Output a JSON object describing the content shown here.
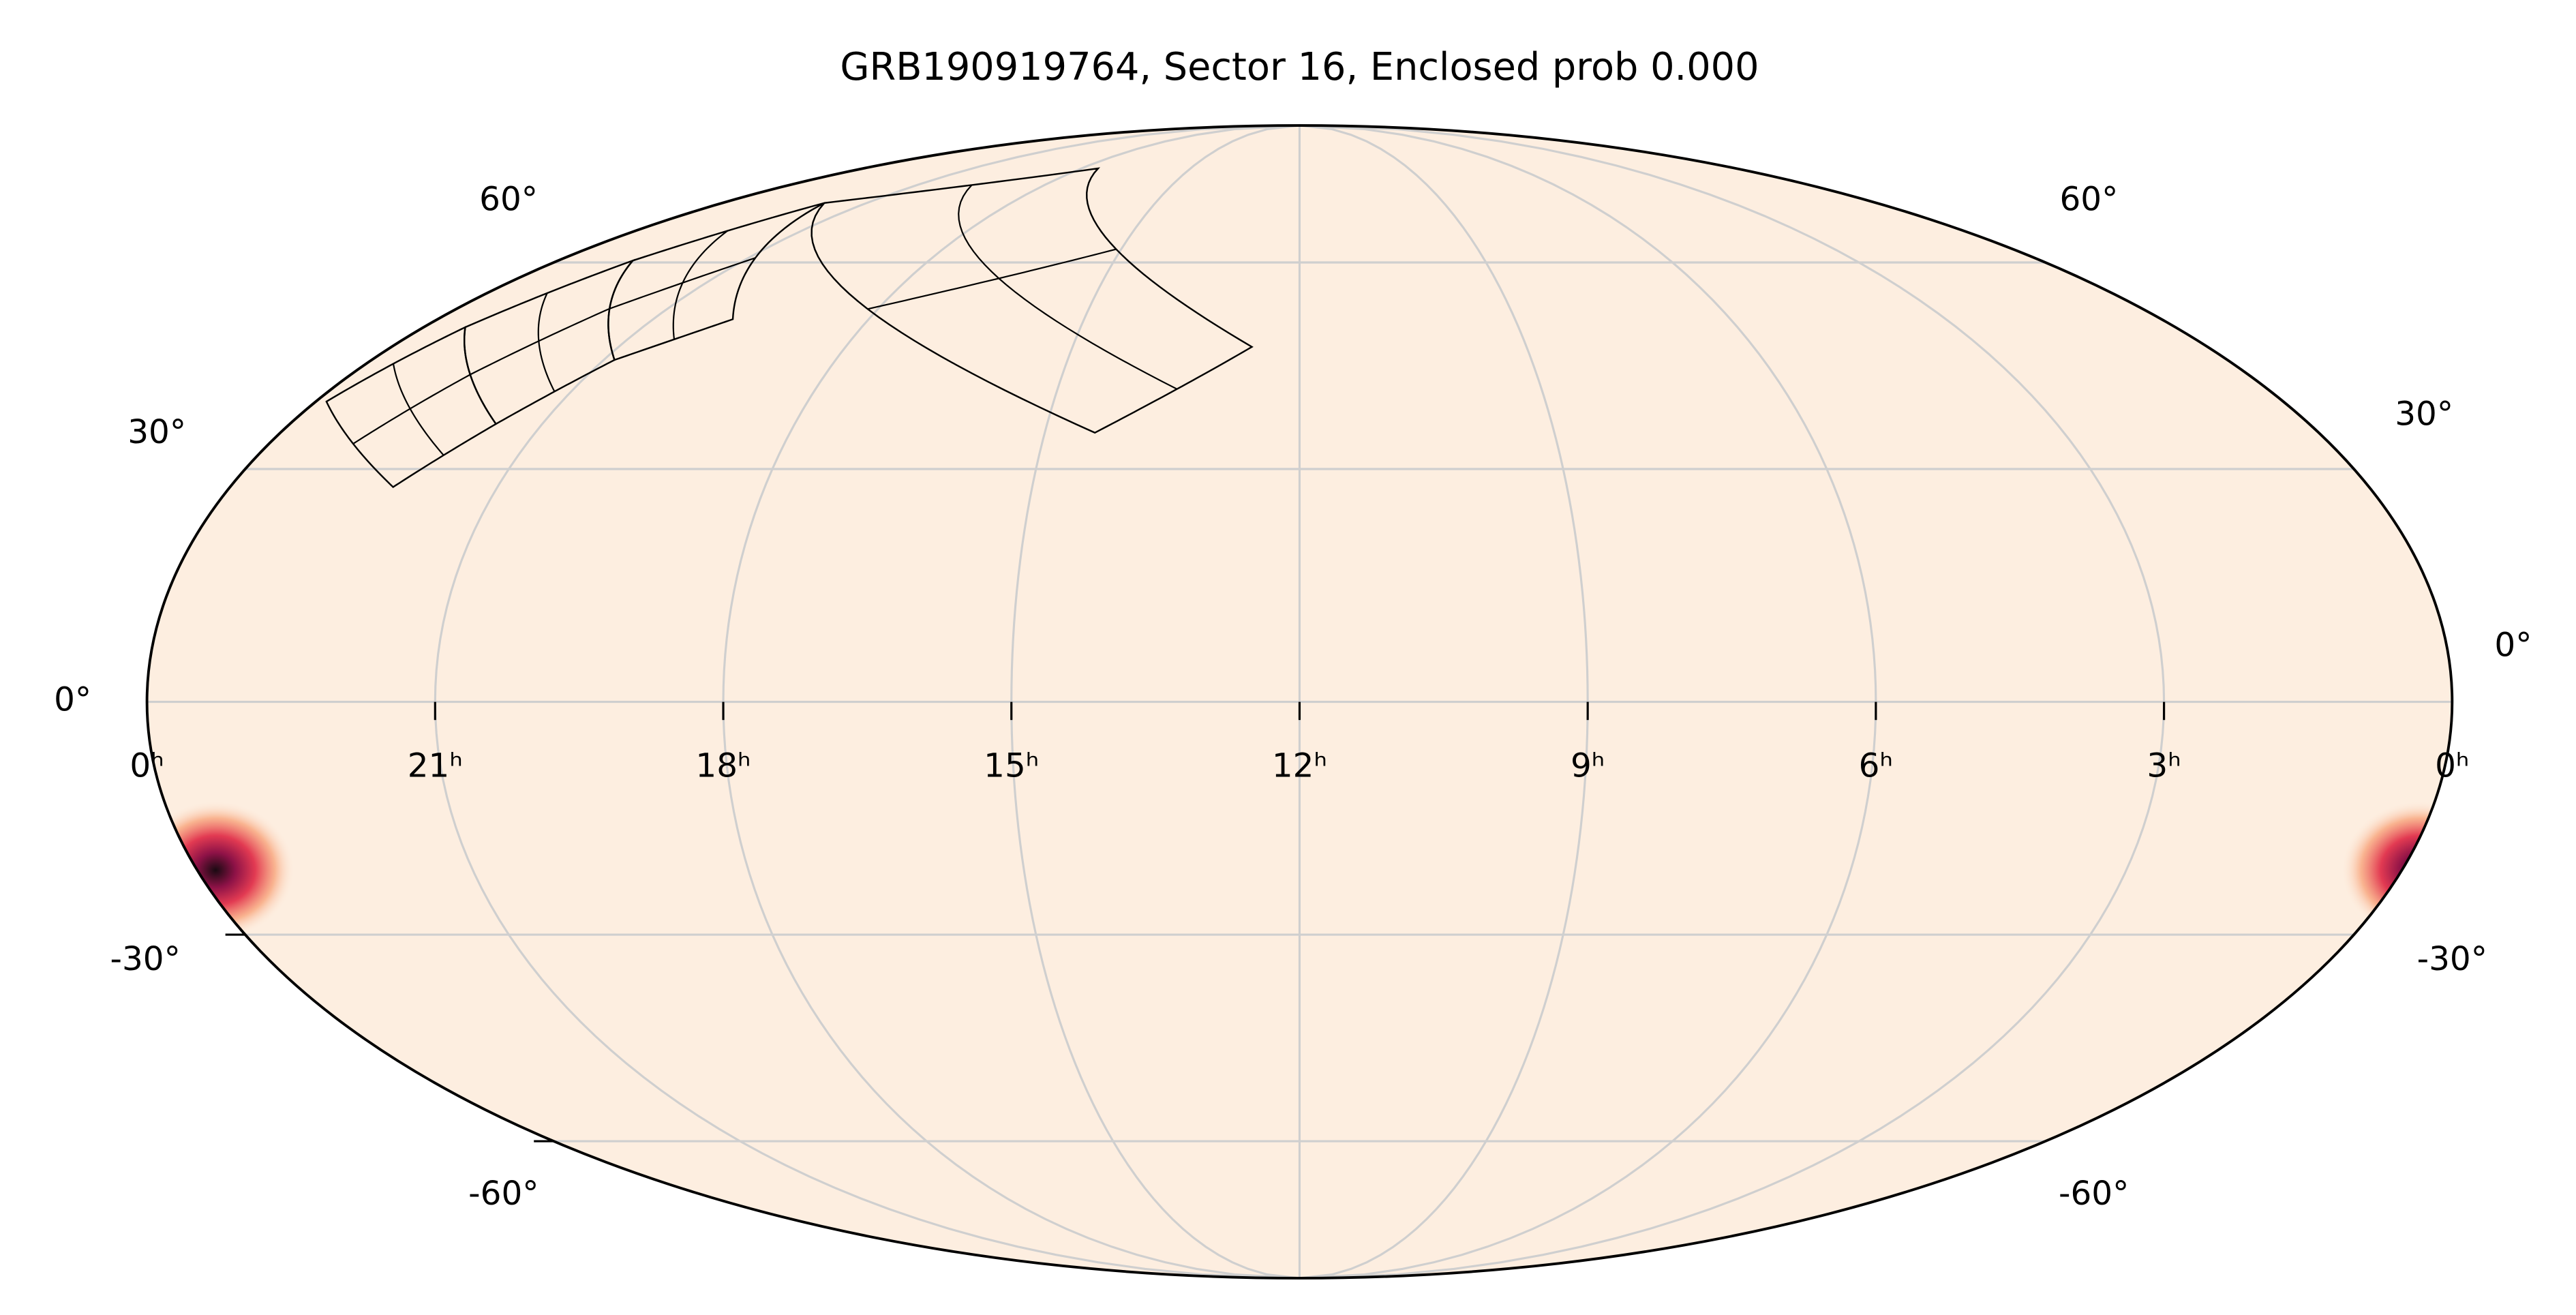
{
  "chart_data": {
    "type": "mollweide",
    "title": "GRB190919764, Sector 16, Enclosed prob 0.000",
    "xticks": [
      {
        "value": 24,
        "label": "0ʰ"
      },
      {
        "value": 21,
        "label": "21ʰ"
      },
      {
        "value": 18,
        "label": "18ʰ"
      },
      {
        "value": 15,
        "label": "15ʰ"
      },
      {
        "value": 12,
        "label": "12ʰ"
      },
      {
        "value": 9,
        "label": "9ʰ"
      },
      {
        "value": 6,
        "label": "6ʰ"
      },
      {
        "value": 3,
        "label": "3ʰ"
      },
      {
        "value": 0,
        "label": "0ʰ"
      }
    ],
    "yticks": [
      {
        "value": 60,
        "label": "60°"
      },
      {
        "value": 30,
        "label": "30°"
      },
      {
        "value": 0,
        "label": "0°"
      },
      {
        "value": -30,
        "label": "-30°"
      },
      {
        "value": -60,
        "label": "-60°"
      }
    ],
    "grid": true,
    "background": "#fdeee0",
    "peak": {
      "ra": 23.8,
      "dec": -21.5
    },
    "footprint_color": "#000000",
    "footprints": [
      {
        "corners": [
          [
            23.87,
            39.2
          ],
          [
            23.43,
            49.9
          ],
          [
            21.55,
            36.1
          ],
          [
            22.17,
            27.6
          ]
        ]
      },
      {
        "corners": [
          [
            23.43,
            49.9
          ],
          [
            22.79,
            60.3
          ],
          [
            20.86,
            45.1
          ],
          [
            21.55,
            36.1
          ]
        ]
      },
      {
        "corners": [
          [
            22.79,
            60.3
          ],
          [
            21.88,
            70.4
          ],
          [
            19.89,
            51.1
          ],
          [
            20.86,
            45.1
          ]
        ]
      },
      {
        "corners": [
          [
            21.88,
            70.4
          ],
          [
            17.54,
            77.4
          ],
          [
            12.63,
            47.0
          ],
          [
            14.41,
            34.9
          ]
        ]
      }
    ]
  }
}
